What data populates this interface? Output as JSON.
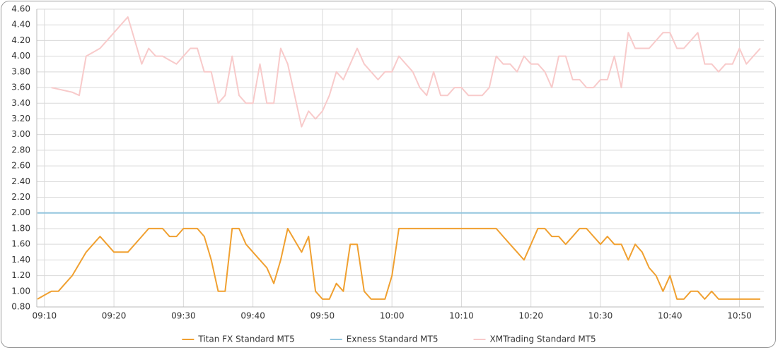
{
  "chart_data": {
    "type": "line",
    "x": [
      "09:09",
      "09:10",
      "09:11",
      "09:12",
      "09:13",
      "09:14",
      "09:15",
      "09:16",
      "09:17",
      "09:18",
      "09:19",
      "09:20",
      "09:21",
      "09:22",
      "09:23",
      "09:24",
      "09:25",
      "09:26",
      "09:27",
      "09:28",
      "09:29",
      "09:30",
      "09:31",
      "09:32",
      "09:33",
      "09:34",
      "09:35",
      "09:36",
      "09:37",
      "09:38",
      "09:39",
      "09:40",
      "09:41",
      "09:42",
      "09:43",
      "09:44",
      "09:45",
      "09:46",
      "09:47",
      "09:48",
      "09:49",
      "09:50",
      "09:51",
      "09:52",
      "09:53",
      "09:54",
      "09:55",
      "09:56",
      "09:57",
      "09:58",
      "09:59",
      "10:00",
      "10:01",
      "10:02",
      "10:03",
      "10:04",
      "10:05",
      "10:06",
      "10:07",
      "10:08",
      "10:09",
      "10:10",
      "10:11",
      "10:12",
      "10:13",
      "10:14",
      "10:15",
      "10:16",
      "10:17",
      "10:18",
      "10:19",
      "10:20",
      "10:21",
      "10:22",
      "10:23",
      "10:24",
      "10:25",
      "10:26",
      "10:27",
      "10:28",
      "10:29",
      "10:30",
      "10:31",
      "10:32",
      "10:33",
      "10:34",
      "10:35",
      "10:36",
      "10:37",
      "10:38",
      "10:39",
      "10:40",
      "10:41",
      "10:42",
      "10:43",
      "10:44",
      "10:45",
      "10:46",
      "10:47",
      "10:48",
      "10:49",
      "10:50",
      "10:51",
      "10:52",
      "10:53"
    ],
    "series": [
      {
        "name": "Titan FX Standard MT5",
        "color": "#f0a030",
        "values": [
          0.9,
          0.95,
          1.0,
          1.0,
          1.1,
          1.2,
          1.35,
          1.5,
          1.6,
          1.7,
          1.6,
          1.5,
          1.5,
          1.5,
          1.6,
          1.7,
          1.8,
          1.8,
          1.8,
          1.7,
          1.7,
          1.8,
          1.8,
          1.8,
          1.7,
          1.4,
          1.0,
          1.0,
          1.8,
          1.8,
          1.6,
          1.5,
          1.4,
          1.3,
          1.1,
          1.4,
          1.8,
          1.65,
          1.5,
          1.7,
          1.0,
          0.9,
          0.9,
          1.1,
          1.0,
          1.6,
          1.6,
          1.0,
          0.9,
          0.9,
          0.9,
          1.2,
          1.8,
          1.8,
          1.8,
          1.8,
          1.8,
          1.8,
          1.8,
          1.8,
          1.8,
          1.8,
          1.8,
          1.8,
          1.8,
          1.8,
          1.8,
          1.7,
          1.6,
          1.5,
          1.4,
          1.6,
          1.8,
          1.8,
          1.7,
          1.7,
          1.6,
          1.7,
          1.8,
          1.8,
          1.7,
          1.6,
          1.7,
          1.6,
          1.6,
          1.4,
          1.6,
          1.5,
          1.3,
          1.2,
          1.0,
          1.2,
          0.9,
          0.9,
          1.0,
          1.0,
          0.9,
          1.0,
          0.9,
          0.9,
          0.9,
          0.9,
          0.9,
          0.9,
          0.9
        ]
      },
      {
        "name": "Exness Standard MT5",
        "color": "#92c5de",
        "values": [
          2.0,
          2.0,
          2.0,
          2.0,
          2.0,
          2.0,
          2.0,
          2.0,
          2.0,
          2.0,
          2.0,
          2.0,
          2.0,
          2.0,
          2.0,
          2.0,
          2.0,
          2.0,
          2.0,
          2.0,
          2.0,
          2.0,
          2.0,
          2.0,
          2.0,
          2.0,
          2.0,
          2.0,
          2.0,
          2.0,
          2.0,
          2.0,
          2.0,
          2.0,
          2.0,
          2.0,
          2.0,
          2.0,
          2.0,
          2.0,
          2.0,
          2.0,
          2.0,
          2.0,
          2.0,
          2.0,
          2.0,
          2.0,
          2.0,
          2.0,
          2.0,
          2.0,
          2.0,
          2.0,
          2.0,
          2.0,
          2.0,
          2.0,
          2.0,
          2.0,
          2.0,
          2.0,
          2.0,
          2.0,
          2.0,
          2.0,
          2.0,
          2.0,
          2.0,
          2.0,
          2.0,
          2.0,
          2.0,
          2.0,
          2.0,
          2.0,
          2.0,
          2.0,
          2.0,
          2.0,
          2.0,
          2.0,
          2.0,
          2.0,
          2.0,
          2.0,
          2.0,
          2.0,
          2.0,
          2.0,
          2.0,
          2.0,
          2.0,
          2.0,
          2.0,
          2.0,
          2.0,
          2.0,
          2.0,
          2.0,
          2.0,
          2.0,
          2.0,
          2.0,
          2.0
        ]
      },
      {
        "name": "XMTrading Standard MT5",
        "color": "#f8caca",
        "values": [
          null,
          null,
          3.6,
          3.58,
          3.56,
          3.54,
          3.5,
          4.0,
          4.05,
          4.1,
          4.2,
          4.3,
          4.4,
          4.5,
          4.2,
          3.9,
          4.1,
          4.0,
          4.0,
          3.95,
          3.9,
          4.0,
          4.1,
          4.1,
          3.8,
          3.8,
          3.4,
          3.5,
          4.0,
          3.5,
          3.4,
          3.4,
          3.9,
          3.4,
          3.4,
          4.1,
          3.9,
          3.5,
          3.1,
          3.3,
          3.2,
          3.3,
          3.5,
          3.8,
          3.7,
          3.9,
          4.1,
          3.9,
          3.8,
          3.7,
          3.8,
          3.8,
          4.0,
          3.9,
          3.8,
          3.6,
          3.5,
          3.8,
          3.5,
          3.5,
          3.6,
          3.6,
          3.5,
          3.5,
          3.5,
          3.6,
          4.0,
          3.9,
          3.9,
          3.8,
          4.0,
          3.9,
          3.9,
          3.8,
          3.6,
          4.0,
          4.0,
          3.7,
          3.7,
          3.6,
          3.6,
          3.7,
          3.7,
          4.0,
          3.6,
          4.3,
          4.1,
          4.1,
          4.1,
          4.2,
          4.3,
          4.3,
          4.1,
          4.1,
          4.2,
          4.3,
          3.9,
          3.9,
          3.8,
          3.9,
          3.9,
          4.1,
          3.9,
          4.0,
          4.1
        ]
      }
    ],
    "xlim": [
      "09:09",
      "10:53"
    ],
    "xticks": [
      "09:10",
      "09:20",
      "09:30",
      "09:40",
      "09:50",
      "10:00",
      "10:10",
      "10:20",
      "10:30",
      "10:40",
      "10:50"
    ],
    "ylim": [
      0.8,
      4.6
    ],
    "yticks": [
      {
        "value": 0.8,
        "label": "0.80"
      },
      {
        "value": 1.0,
        "label": "1.00"
      },
      {
        "value": 1.2,
        "label": "1.20"
      },
      {
        "value": 1.4,
        "label": "1.40"
      },
      {
        "value": 1.6,
        "label": "1.60"
      },
      {
        "value": 1.8,
        "label": "1.80"
      },
      {
        "value": 2.0,
        "label": "2.00"
      },
      {
        "value": 2.2,
        "label": "2.20"
      },
      {
        "value": 2.4,
        "label": "2.40"
      },
      {
        "value": 2.6,
        "label": "2.60"
      },
      {
        "value": 2.8,
        "label": "2.80"
      },
      {
        "value": 3.0,
        "label": "3.00"
      },
      {
        "value": 3.2,
        "label": "3.20"
      },
      {
        "value": 3.4,
        "label": "3.40"
      },
      {
        "value": 3.6,
        "label": "3.60"
      },
      {
        "value": 3.8,
        "label": "3.80"
      },
      {
        "value": 4.0,
        "label": "4.00"
      },
      {
        "value": 4.2,
        "label": "4.20"
      },
      {
        "value": 4.4,
        "label": "4.40"
      },
      {
        "value": 4.6,
        "label": "4.60"
      }
    ],
    "grid": true,
    "legend": "bottom"
  }
}
